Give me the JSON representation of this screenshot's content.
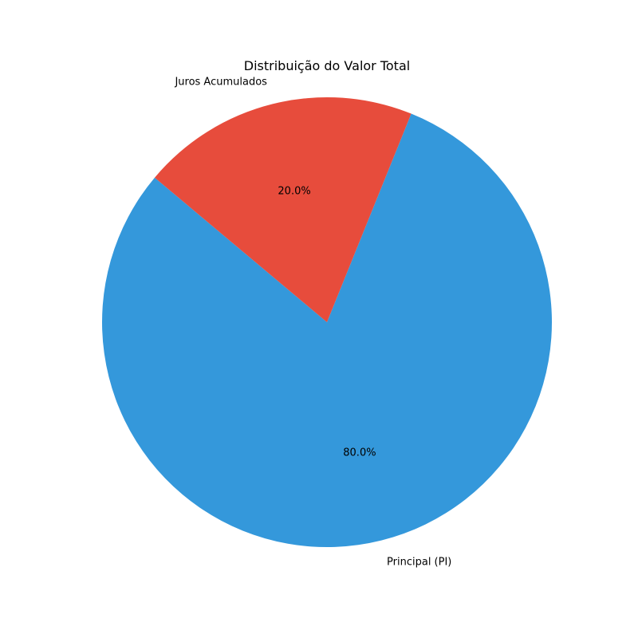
{
  "chart_data": {
    "type": "pie",
    "title": "Distribuição do Valor Total",
    "labels": [
      "Principal (PI)",
      "Juros Acumulados"
    ],
    "values": [
      80.0,
      20.0
    ],
    "percent_labels": [
      "80.0%",
      "20.0%"
    ],
    "colors": [
      "#3498db",
      "#e74c3c"
    ],
    "start_angle_deg": 140,
    "direction": "counterclockwise"
  }
}
